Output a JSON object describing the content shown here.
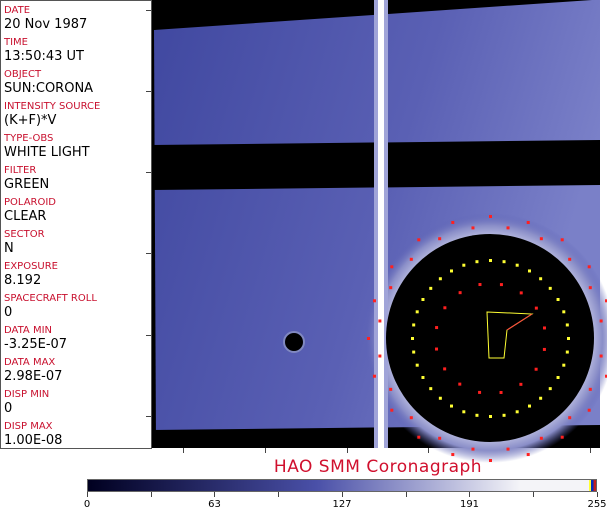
{
  "fields": [
    {
      "label": "DATE",
      "value": "20 Nov 1987"
    },
    {
      "label": "TIME",
      "value": "13:50:43 UT"
    },
    {
      "label": "OBJECT",
      "value": "SUN:CORONA"
    },
    {
      "label": "INTENSITY SOURCE",
      "value": "(K+F)*V"
    },
    {
      "label": "TYPE-OBS",
      "value": "WHITE LIGHT"
    },
    {
      "label": "FILTER",
      "value": "GREEN"
    },
    {
      "label": "POLAROID",
      "value": "CLEAR"
    },
    {
      "label": "SECTOR",
      "value": "N"
    },
    {
      "label": "EXPOSURE",
      "value": "8.192"
    },
    {
      "label": "SPACECRAFT ROLL",
      "value": "0"
    },
    {
      "label": "DATA MIN",
      "value": "-3.25E-07"
    },
    {
      "label": "DATA MAX",
      "value": "2.98E-07"
    },
    {
      "label": "DISP MIN",
      "value": "0"
    },
    {
      "label": "DISP MAX",
      "value": "1.00E-08"
    }
  ],
  "title": "HAO  SMM Coronagraph",
  "colorbar": {
    "ticks": [
      "0",
      "63",
      "127",
      "191",
      "255"
    ],
    "colors": [
      "#000020",
      "#4a50a8",
      "#f4f4f8"
    ]
  },
  "colors": {
    "label": "#c8102e",
    "dots_yellow": "#ffff33",
    "dots_red": "#ff2020"
  }
}
